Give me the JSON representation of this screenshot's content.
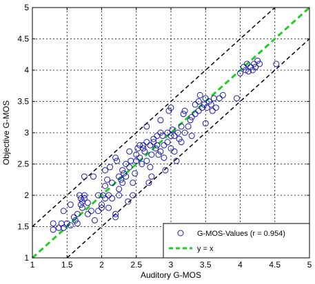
{
  "chart_data": {
    "type": "scatter",
    "title": "",
    "xlabel": "Auditory G-MOS",
    "ylabel": "Objective G-MOS",
    "xlim": [
      1,
      5
    ],
    "ylim": [
      1,
      5
    ],
    "x_ticks": [
      "1",
      "1.5",
      "2",
      "2.5",
      "3",
      "3.5",
      "4",
      "4.5",
      "5"
    ],
    "y_ticks": [
      "1",
      "1.5",
      "2",
      "2.5",
      "3",
      "3.5",
      "4",
      "4.5",
      "5"
    ],
    "grid": true,
    "legend_position": "bottom-right",
    "legend": {
      "scatter_label": "G-MOS-Values (r = 0.954)",
      "line_label": "y = x"
    },
    "colors": {
      "points": "#1a1ab0",
      "identity_line": "#22cc22",
      "bounds": "#000000"
    },
    "reference_lines": [
      {
        "name": "y = x",
        "offset": 0,
        "style": "dashed-green"
      },
      {
        "offset": 0.5,
        "style": "dashed-black"
      },
      {
        "offset": -0.5,
        "style": "dashed-black"
      }
    ],
    "series": [
      {
        "name": "G-MOS-Values (r = 0.954)",
        "points": [
          [
            1.3,
            1.55
          ],
          [
            1.3,
            1.45
          ],
          [
            1.38,
            1.48
          ],
          [
            1.42,
            1.55
          ],
          [
            1.45,
            1.75
          ],
          [
            1.45,
            1.48
          ],
          [
            1.5,
            1.55
          ],
          [
            1.55,
            1.85
          ],
          [
            1.55,
            1.52
          ],
          [
            1.6,
            1.65
          ],
          [
            1.62,
            1.6
          ],
          [
            1.65,
            1.55
          ],
          [
            1.65,
            1.7
          ],
          [
            1.68,
            2.0
          ],
          [
            1.7,
            1.95
          ],
          [
            1.7,
            1.85
          ],
          [
            1.72,
            1.8
          ],
          [
            1.72,
            1.9
          ],
          [
            1.75,
            2.0
          ],
          [
            1.75,
            1.95
          ],
          [
            1.75,
            2.3
          ],
          [
            1.8,
            1.88
          ],
          [
            1.8,
            1.7
          ],
          [
            1.85,
            1.75
          ],
          [
            1.88,
            2.3
          ],
          [
            1.9,
            1.6
          ],
          [
            1.95,
            1.75
          ],
          [
            1.95,
            2.0
          ],
          [
            2.0,
            1.8
          ],
          [
            2.0,
            1.85
          ],
          [
            2.02,
            2.0
          ],
          [
            2.05,
            2.15
          ],
          [
            2.05,
            1.95
          ],
          [
            2.05,
            2.4
          ],
          [
            2.08,
            2.25
          ],
          [
            2.1,
            2.0
          ],
          [
            2.1,
            1.8
          ],
          [
            2.12,
            2.45
          ],
          [
            2.15,
            2.2
          ],
          [
            2.15,
            1.95
          ],
          [
            2.2,
            1.7
          ],
          [
            2.2,
            1.65
          ],
          [
            2.2,
            2.6
          ],
          [
            2.22,
            2.55
          ],
          [
            2.25,
            2.3
          ],
          [
            2.25,
            2.1
          ],
          [
            2.25,
            2.0
          ],
          [
            2.28,
            2.25
          ],
          [
            2.3,
            2.4
          ],
          [
            2.3,
            2.2
          ],
          [
            2.32,
            2.35
          ],
          [
            2.35,
            2.5
          ],
          [
            2.35,
            2.3
          ],
          [
            2.38,
            1.9
          ],
          [
            2.4,
            2.45
          ],
          [
            2.4,
            2.7
          ],
          [
            2.42,
            2.55
          ],
          [
            2.45,
            2.0
          ],
          [
            2.45,
            2.2
          ],
          [
            2.48,
            2.35
          ],
          [
            2.5,
            2.55
          ],
          [
            2.5,
            2.65
          ],
          [
            2.52,
            2.75
          ],
          [
            2.55,
            2.8
          ],
          [
            2.55,
            2.6
          ],
          [
            2.58,
            2.5
          ],
          [
            2.6,
            2.75
          ],
          [
            2.6,
            2.8
          ],
          [
            2.62,
            2.7
          ],
          [
            2.65,
            2.85
          ],
          [
            2.65,
            2.55
          ],
          [
            2.65,
            3.1
          ],
          [
            2.68,
            2.2
          ],
          [
            2.7,
            2.45
          ],
          [
            2.7,
            2.8
          ],
          [
            2.72,
            2.3
          ],
          [
            2.72,
            2.65
          ],
          [
            2.75,
            2.9
          ],
          [
            2.75,
            2.85
          ],
          [
            2.78,
            2.75
          ],
          [
            2.8,
            2.95
          ],
          [
            2.8,
            2.8
          ],
          [
            2.82,
            2.65
          ],
          [
            2.85,
            3.0
          ],
          [
            2.85,
            2.7
          ],
          [
            2.85,
            3.2
          ],
          [
            2.88,
            2.95
          ],
          [
            2.9,
            2.8
          ],
          [
            2.9,
            2.6
          ],
          [
            2.92,
            2.4
          ],
          [
            2.95,
            3.0
          ],
          [
            2.95,
            2.85
          ],
          [
            2.97,
            3.35
          ],
          [
            3.0,
            2.95
          ],
          [
            3.0,
            2.75
          ],
          [
            3.0,
            3.4
          ],
          [
            3.02,
            3.05
          ],
          [
            3.05,
            2.95
          ],
          [
            3.05,
            2.7
          ],
          [
            3.08,
            2.55
          ],
          [
            3.1,
            3.0
          ],
          [
            3.12,
            2.9
          ],
          [
            3.15,
            3.1
          ],
          [
            3.15,
            2.85
          ],
          [
            3.18,
            3.3
          ],
          [
            3.2,
            3.35
          ],
          [
            3.2,
            3.0
          ],
          [
            3.25,
            3.1
          ],
          [
            3.28,
            3.2
          ],
          [
            3.3,
            3.25
          ],
          [
            3.3,
            2.95
          ],
          [
            3.35,
            3.45
          ],
          [
            3.35,
            3.3
          ],
          [
            3.4,
            3.5
          ],
          [
            3.4,
            3.35
          ],
          [
            3.42,
            3.6
          ],
          [
            3.45,
            3.4
          ],
          [
            3.48,
            3.45
          ],
          [
            3.5,
            3.55
          ],
          [
            3.5,
            3.15
          ],
          [
            3.52,
            3.4
          ],
          [
            3.55,
            3.5
          ],
          [
            3.58,
            3.45
          ],
          [
            3.6,
            3.35
          ],
          [
            3.62,
            3.55
          ],
          [
            3.65,
            3.4
          ],
          [
            3.7,
            3.55
          ],
          [
            3.75,
            3.6
          ],
          [
            3.95,
            3.55
          ],
          [
            4.0,
            3.95
          ],
          [
            4.05,
            4.05
          ],
          [
            4.08,
            4.0
          ],
          [
            4.1,
            4.1
          ],
          [
            4.12,
            3.98
          ],
          [
            4.15,
            4.05
          ],
          [
            4.18,
            4.0
          ],
          [
            4.2,
            4.1
          ],
          [
            4.22,
            4.05
          ],
          [
            4.25,
            4.15
          ],
          [
            4.28,
            4.1
          ],
          [
            4.52,
            4.1
          ]
        ]
      }
    ]
  }
}
